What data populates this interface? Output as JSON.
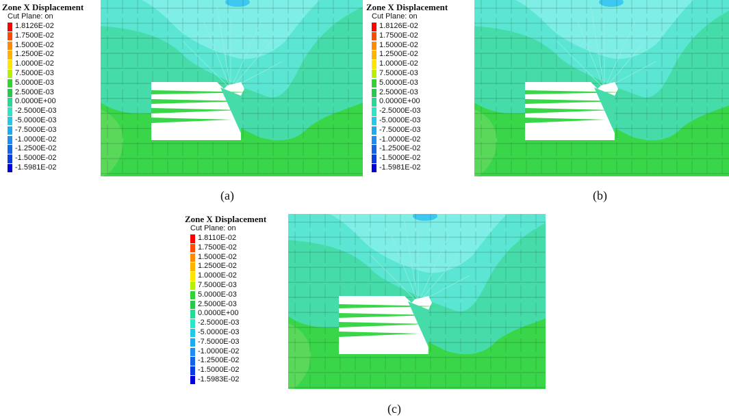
{
  "panels": [
    {
      "id": "a",
      "caption": "(a)",
      "legend_title": "Zone X Displacement",
      "legend_subtitle": "Cut Plane: on",
      "legend_entries": [
        "1.8126E-02",
        "1.7500E-02",
        "1.5000E-02",
        "1.2500E-02",
        "1.0000E-02",
        "7.5000E-03",
        "5.0000E-03",
        "2.5000E-03",
        "0.0000E+00",
        "-2.5000E-03",
        "-5.0000E-03",
        "-7.5000E-03",
        "-1.0000E-02",
        "-1.2500E-02",
        "-1.5000E-02",
        "-1.5981E-02"
      ]
    },
    {
      "id": "b",
      "caption": "(b)",
      "legend_title": "Zone X Displacement",
      "legend_subtitle": "Cut Plane: on",
      "legend_entries": [
        "1.8126E-02",
        "1.7500E-02",
        "1.5000E-02",
        "1.2500E-02",
        "1.0000E-02",
        "7.5000E-03",
        "5.0000E-03",
        "2.5000E-03",
        "0.0000E+00",
        "-2.5000E-03",
        "-5.0000E-03",
        "-7.5000E-03",
        "-1.0000E-02",
        "-1.2500E-02",
        "-1.5000E-02",
        "-1.5981E-02"
      ]
    },
    {
      "id": "c",
      "caption": "(c)",
      "legend_title": "Zone X Displacement",
      "legend_subtitle": "Cut Plane: on",
      "legend_entries": [
        "1.8110E-02",
        "1.7500E-02",
        "1.5000E-02",
        "1.2500E-02",
        "1.0000E-02",
        "7.5000E-03",
        "5.0000E-03",
        "2.5000E-03",
        "0.0000E+00",
        "-2.5000E-03",
        "-5.0000E-03",
        "-7.5000E-03",
        "-1.0000E-02",
        "-1.2500E-02",
        "-1.5000E-02",
        "-1.5983E-02"
      ]
    }
  ],
  "legend_colors": [
    "#ff0000",
    "#ff4a00",
    "#ff8c00",
    "#ffb400",
    "#ffe600",
    "#b4f000",
    "#32d232",
    "#28c84b",
    "#22dc96",
    "#2ae6c8",
    "#22c8e6",
    "#1eaaf0",
    "#1e8cf0",
    "#1464e6",
    "#0a3ce1",
    "#0000dc"
  ],
  "field_colors": {
    "green": "#39d64a",
    "light_green": "#5ad85a",
    "cyan_green": "#46dcaa",
    "cyan": "#5ae6d2",
    "light_cyan": "#7eeee6",
    "blue_spot": "#3cc8f0",
    "grid": "#1e3a1e",
    "opening": "#ffffff"
  }
}
